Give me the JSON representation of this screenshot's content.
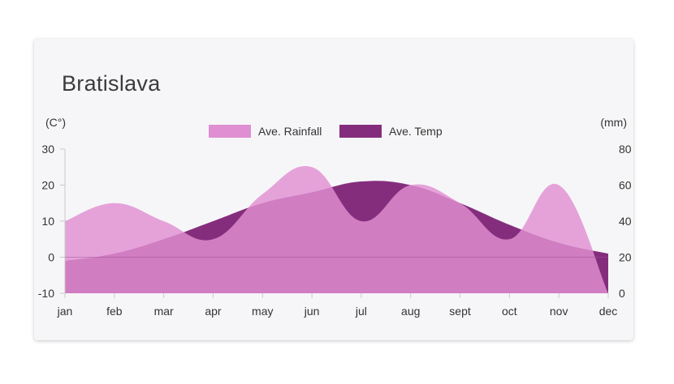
{
  "header": {
    "title": "Bratislava"
  },
  "chart_data": {
    "type": "area",
    "title": "Bratislava",
    "categories": [
      "jan",
      "feb",
      "mar",
      "apr",
      "may",
      "jun",
      "jul",
      "aug",
      "sept",
      "oct",
      "nov",
      "dec"
    ],
    "y_left": {
      "label": "(C°)",
      "ticks": [
        30,
        20,
        10,
        0,
        -10
      ],
      "range": [
        -10,
        30
      ]
    },
    "y_right": {
      "label": "(mm)",
      "ticks": [
        80,
        60,
        40,
        20,
        0
      ],
      "range": [
        0,
        80
      ]
    },
    "legend_position": "top",
    "series": [
      {
        "name": "Ave. Rainfall",
        "axis": "right",
        "color": "#e08fd2",
        "values": [
          40,
          50,
          40,
          30,
          55,
          70,
          40,
          60,
          50,
          30,
          60,
          0
        ]
      },
      {
        "name": "Ave. Temp",
        "axis": "left",
        "color": "#852d7d",
        "values": [
          -1,
          1,
          5,
          10,
          15,
          18,
          21,
          20,
          15,
          9,
          4,
          1
        ]
      }
    ]
  }
}
